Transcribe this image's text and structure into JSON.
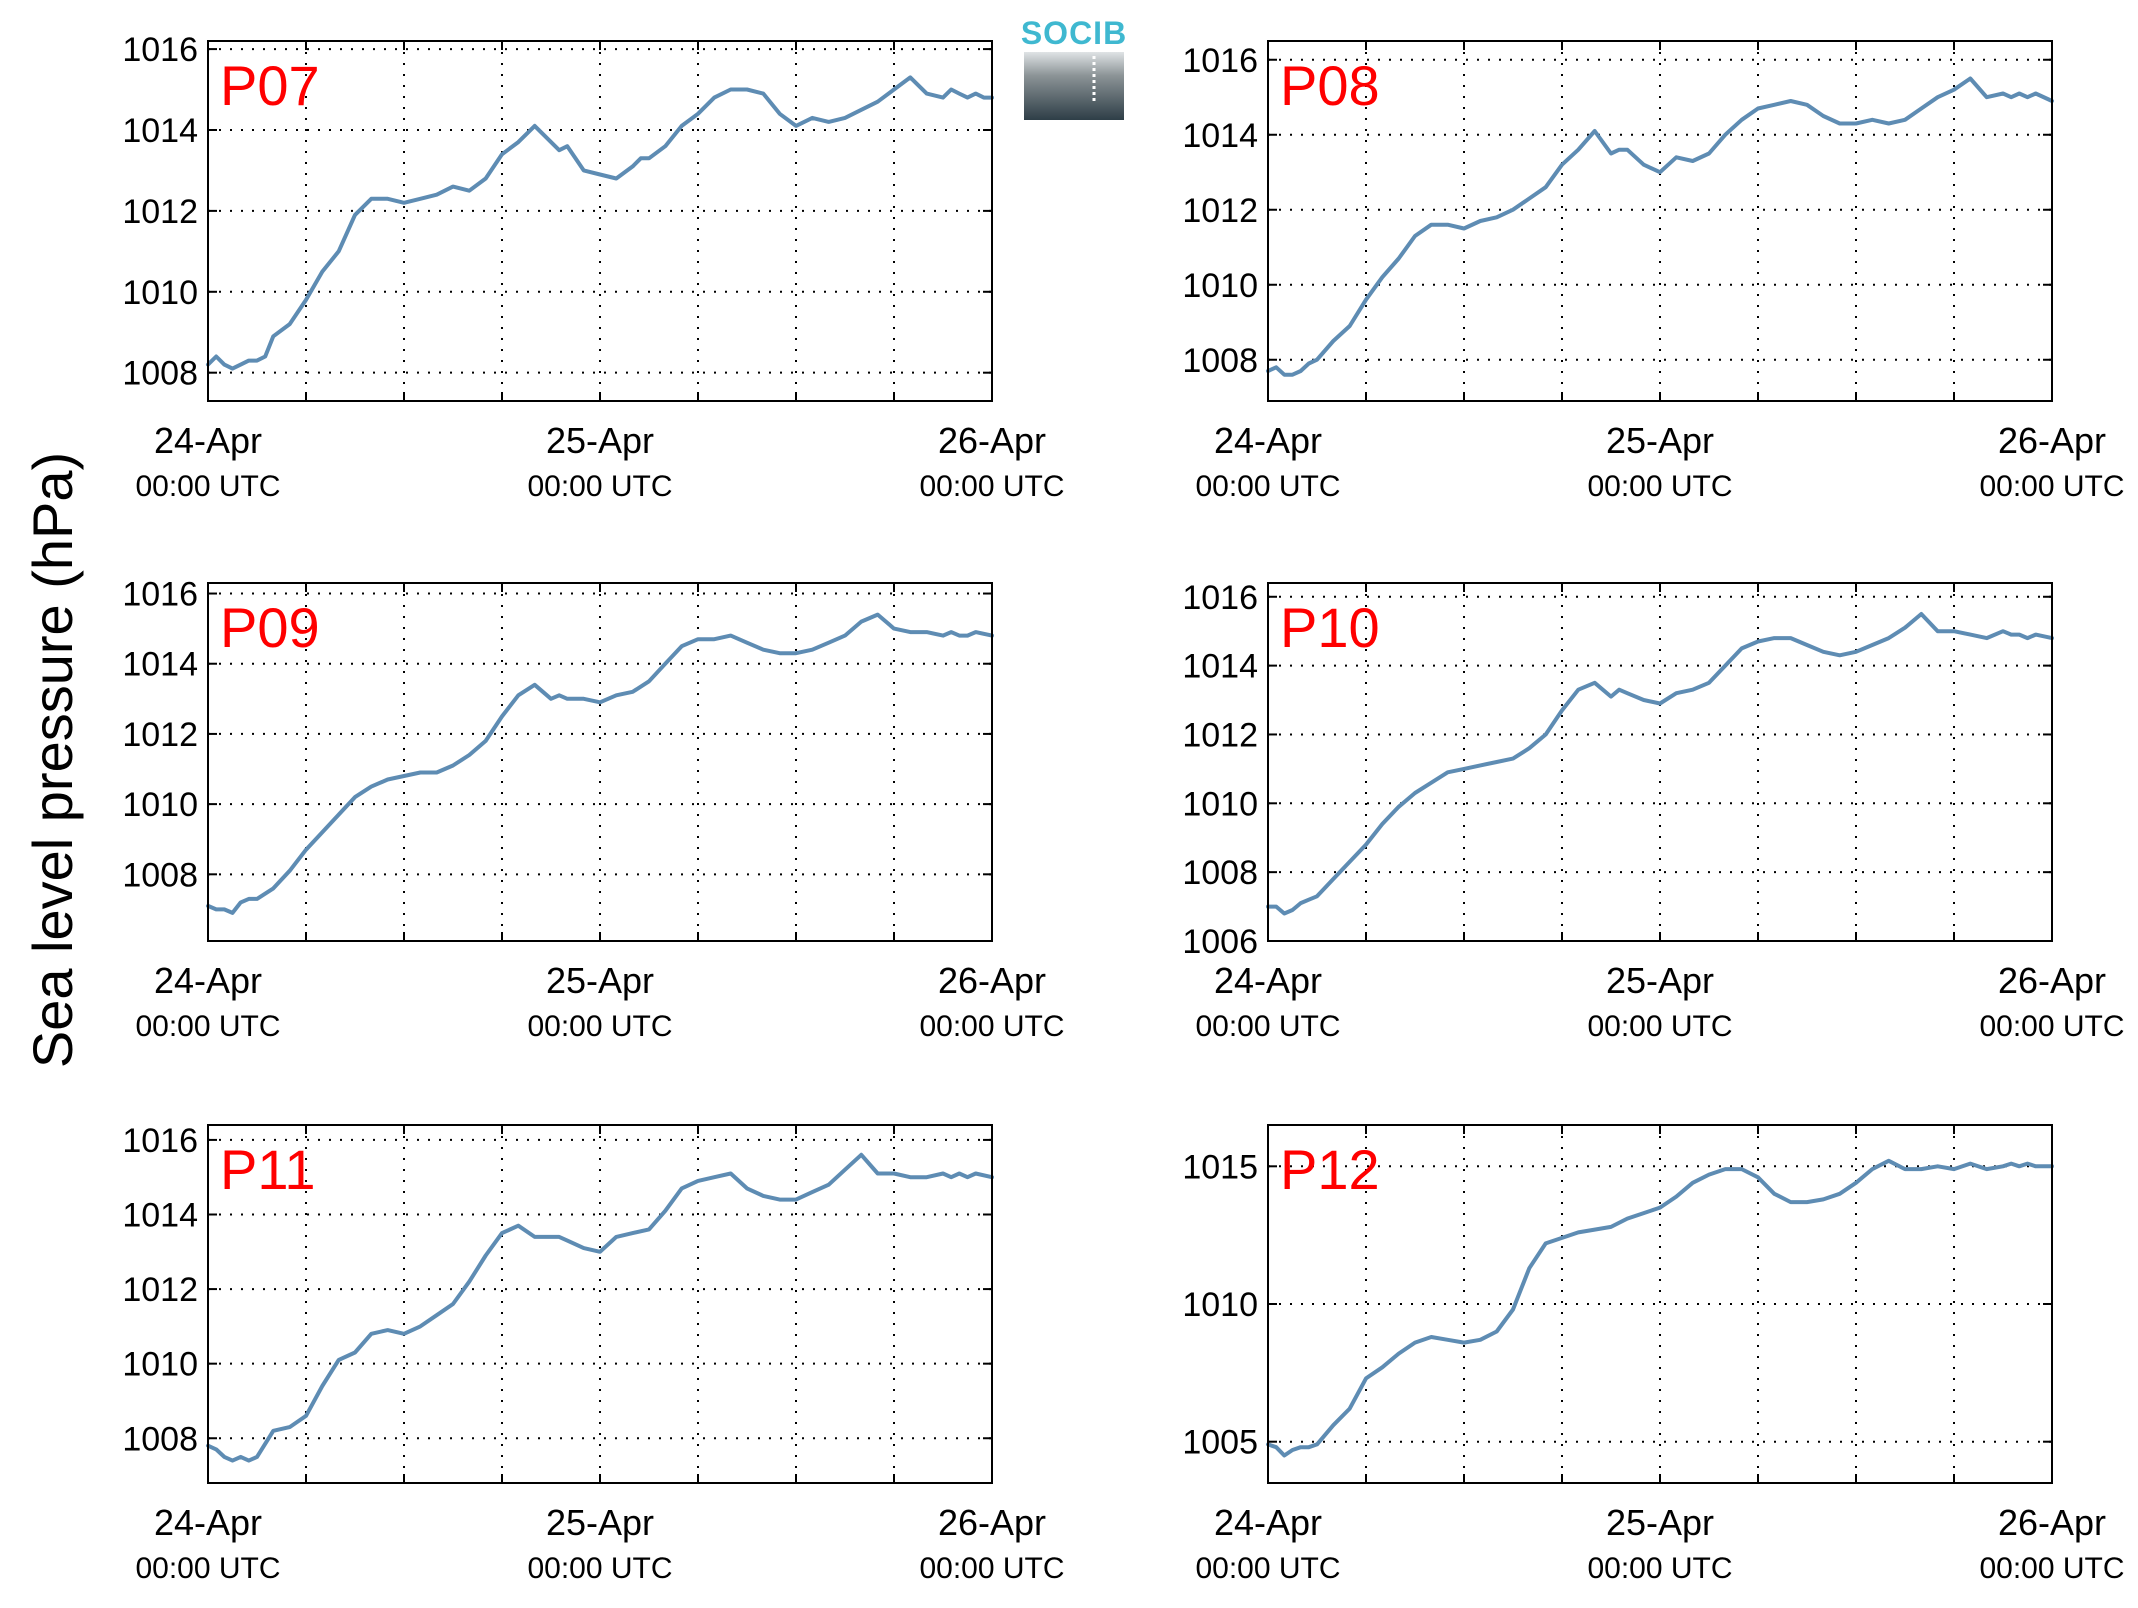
{
  "figure": {
    "ylabel": "Sea level pressure (hPa)",
    "logo_text": "SOCIB"
  },
  "colors": {
    "line": "#5e8cb3",
    "panel_label": "#ff0000",
    "grid": "#000000",
    "logo_top": "#3fb8d0",
    "logo_mid": "#8b9396",
    "logo_bottom": "#2e3e47"
  },
  "x_ticks": [
    {
      "date": "24-Apr",
      "time": "00:00 UTC"
    },
    {
      "date": "25-Apr",
      "time": "00:00 UTC"
    },
    {
      "date": "26-Apr",
      "time": "00:00 UTC"
    }
  ],
  "x_axis": {
    "unit": "hours",
    "xlim": [
      0,
      48
    ],
    "grid_step": 6,
    "major_ticks": [
      0,
      24,
      48
    ]
  },
  "chart_data": [
    {
      "type": "line",
      "panel_label": "P07",
      "title": "",
      "xlabel": "",
      "ylabel": "Sea level pressure (hPa)",
      "ylim": [
        1007.3,
        1016.2
      ],
      "yticks": [
        1008,
        1010,
        1012,
        1014,
        1016
      ],
      "ytick_labels": [
        "1008",
        "1010",
        "1012",
        "1014",
        "1016"
      ],
      "grid": true,
      "series": [
        {
          "x": [
            0,
            0.5,
            1,
            1.5,
            2,
            2.5,
            3,
            3.5,
            4,
            5,
            6,
            7,
            8,
            9,
            10,
            11,
            12,
            13,
            14,
            15,
            16,
            17,
            18,
            19,
            20,
            21,
            21.5,
            22,
            23,
            24,
            25,
            26,
            26.5,
            27,
            28,
            29,
            30,
            31,
            32,
            33,
            34,
            35,
            36,
            37,
            38,
            39,
            40,
            41,
            42,
            43,
            44,
            45,
            45.5,
            46,
            46.5,
            47,
            47.5,
            48
          ],
          "y": [
            1008.2,
            1008.4,
            1008.2,
            1008.1,
            1008.2,
            1008.3,
            1008.3,
            1008.4,
            1008.9,
            1009.2,
            1009.8,
            1010.5,
            1011.0,
            1011.9,
            1012.3,
            1012.3,
            1012.2,
            1012.3,
            1012.4,
            1012.6,
            1012.5,
            1012.8,
            1013.4,
            1013.7,
            1014.1,
            1013.7,
            1013.5,
            1013.6,
            1013.0,
            1012.9,
            1012.8,
            1013.1,
            1013.3,
            1013.3,
            1013.6,
            1014.1,
            1014.4,
            1014.8,
            1015.0,
            1015.0,
            1014.9,
            1014.4,
            1014.1,
            1014.3,
            1014.2,
            1014.3,
            1014.5,
            1014.7,
            1015.0,
            1015.3,
            1014.9,
            1014.8,
            1015.0,
            1014.9,
            1014.8,
            1014.9,
            1014.8,
            1014.8
          ]
        }
      ]
    },
    {
      "type": "line",
      "panel_label": "P08",
      "title": "",
      "xlabel": "",
      "ylabel": "Sea level pressure (hPa)",
      "ylim": [
        1006.9,
        1016.5
      ],
      "yticks": [
        1008,
        1010,
        1012,
        1014,
        1016
      ],
      "ytick_labels": [
        "1008",
        "1010",
        "1012",
        "1014",
        "1016"
      ],
      "grid": true,
      "series": [
        {
          "x": [
            0,
            0.5,
            1,
            1.5,
            2,
            2.5,
            3,
            4,
            5,
            6,
            7,
            8,
            9,
            10,
            11,
            12,
            13,
            14,
            15,
            16,
            17,
            18,
            19,
            20,
            21,
            21.5,
            22,
            23,
            24,
            25,
            26,
            27,
            28,
            29,
            30,
            31,
            32,
            33,
            34,
            35,
            36,
            37,
            38,
            39,
            40,
            41,
            42,
            43,
            44,
            45,
            45.5,
            46,
            46.5,
            47,
            48
          ],
          "y": [
            1007.7,
            1007.8,
            1007.6,
            1007.6,
            1007.7,
            1007.9,
            1008.0,
            1008.5,
            1008.9,
            1009.6,
            1010.2,
            1010.7,
            1011.3,
            1011.6,
            1011.6,
            1011.5,
            1011.7,
            1011.8,
            1012.0,
            1012.3,
            1012.6,
            1013.2,
            1013.6,
            1014.1,
            1013.5,
            1013.6,
            1013.6,
            1013.2,
            1013.0,
            1013.4,
            1013.3,
            1013.5,
            1014.0,
            1014.4,
            1014.7,
            1014.8,
            1014.9,
            1014.8,
            1014.5,
            1014.3,
            1014.3,
            1014.4,
            1014.3,
            1014.4,
            1014.7,
            1015.0,
            1015.2,
            1015.5,
            1015.0,
            1015.1,
            1015.0,
            1015.1,
            1015.0,
            1015.1,
            1014.9
          ]
        }
      ]
    },
    {
      "type": "line",
      "panel_label": "P09",
      "title": "",
      "xlabel": "",
      "ylabel": "Sea level pressure (hPa)",
      "ylim": [
        1006.1,
        1016.3
      ],
      "yticks": [
        1008,
        1010,
        1012,
        1014,
        1016
      ],
      "ytick_labels": [
        "1008",
        "1010",
        "1012",
        "1014",
        "1016"
      ],
      "grid": true,
      "series": [
        {
          "x": [
            0,
            0.5,
            1,
            1.5,
            2,
            2.5,
            3,
            4,
            5,
            6,
            7,
            8,
            9,
            10,
            11,
            12,
            13,
            14,
            15,
            16,
            17,
            18,
            19,
            20,
            21,
            21.5,
            22,
            23,
            24,
            25,
            26,
            27,
            28,
            29,
            30,
            31,
            32,
            33,
            34,
            35,
            36,
            37,
            38,
            39,
            40,
            41,
            42,
            43,
            44,
            45,
            45.5,
            46,
            46.5,
            47,
            48
          ],
          "y": [
            1007.1,
            1007.0,
            1007.0,
            1006.9,
            1007.2,
            1007.3,
            1007.3,
            1007.6,
            1008.1,
            1008.7,
            1009.2,
            1009.7,
            1010.2,
            1010.5,
            1010.7,
            1010.8,
            1010.9,
            1010.9,
            1011.1,
            1011.4,
            1011.8,
            1012.5,
            1013.1,
            1013.4,
            1013.0,
            1013.1,
            1013.0,
            1013.0,
            1012.9,
            1013.1,
            1013.2,
            1013.5,
            1014.0,
            1014.5,
            1014.7,
            1014.7,
            1014.8,
            1014.6,
            1014.4,
            1014.3,
            1014.3,
            1014.4,
            1014.6,
            1014.8,
            1015.2,
            1015.4,
            1015.0,
            1014.9,
            1014.9,
            1014.8,
            1014.9,
            1014.8,
            1014.8,
            1014.9,
            1014.8
          ]
        }
      ]
    },
    {
      "type": "line",
      "panel_label": "P10",
      "title": "",
      "xlabel": "",
      "ylabel": "Sea level pressure (hPa)",
      "ylim": [
        1006.0,
        1016.4
      ],
      "yticks": [
        1006,
        1008,
        1010,
        1012,
        1014,
        1016
      ],
      "ytick_labels": [
        "1006",
        "1008",
        "1010",
        "1012",
        "1014",
        "1016"
      ],
      "grid": true,
      "series": [
        {
          "x": [
            0,
            0.5,
            1,
            1.5,
            2,
            2.5,
            3,
            4,
            5,
            6,
            7,
            8,
            9,
            10,
            11,
            12,
            13,
            14,
            15,
            16,
            17,
            18,
            19,
            20,
            21,
            21.5,
            22,
            23,
            24,
            25,
            26,
            27,
            28,
            29,
            30,
            31,
            32,
            33,
            34,
            35,
            36,
            37,
            38,
            39,
            40,
            41,
            42,
            43,
            44,
            45,
            45.5,
            46,
            46.5,
            47,
            48
          ],
          "y": [
            1007.0,
            1007.0,
            1006.8,
            1006.9,
            1007.1,
            1007.2,
            1007.3,
            1007.8,
            1008.3,
            1008.8,
            1009.4,
            1009.9,
            1010.3,
            1010.6,
            1010.9,
            1011.0,
            1011.1,
            1011.2,
            1011.3,
            1011.6,
            1012.0,
            1012.7,
            1013.3,
            1013.5,
            1013.1,
            1013.3,
            1013.2,
            1013.0,
            1012.9,
            1013.2,
            1013.3,
            1013.5,
            1014.0,
            1014.5,
            1014.7,
            1014.8,
            1014.8,
            1014.6,
            1014.4,
            1014.3,
            1014.4,
            1014.6,
            1014.8,
            1015.1,
            1015.5,
            1015.0,
            1015.0,
            1014.9,
            1014.8,
            1015.0,
            1014.9,
            1014.9,
            1014.8,
            1014.9,
            1014.8
          ]
        }
      ]
    },
    {
      "type": "line",
      "panel_label": "P11",
      "title": "",
      "xlabel": "",
      "ylabel": "Sea level pressure (hPa)",
      "ylim": [
        1006.8,
        1016.4
      ],
      "yticks": [
        1008,
        1010,
        1012,
        1014,
        1016
      ],
      "ytick_labels": [
        "1008",
        "1010",
        "1012",
        "1014",
        "1016"
      ],
      "grid": true,
      "series": [
        {
          "x": [
            0,
            0.5,
            1,
            1.5,
            2,
            2.5,
            3,
            4,
            5,
            6,
            7,
            8,
            9,
            10,
            11,
            12,
            13,
            14,
            15,
            16,
            17,
            18,
            19,
            20,
            21,
            21.5,
            22,
            23,
            24,
            25,
            26,
            27,
            28,
            29,
            30,
            31,
            32,
            33,
            34,
            35,
            36,
            37,
            38,
            39,
            40,
            41,
            42,
            43,
            44,
            45,
            45.5,
            46,
            46.5,
            47,
            48
          ],
          "y": [
            1007.8,
            1007.7,
            1007.5,
            1007.4,
            1007.5,
            1007.4,
            1007.5,
            1008.2,
            1008.3,
            1008.6,
            1009.4,
            1010.1,
            1010.3,
            1010.8,
            1010.9,
            1010.8,
            1011.0,
            1011.3,
            1011.6,
            1012.2,
            1012.9,
            1013.5,
            1013.7,
            1013.4,
            1013.4,
            1013.4,
            1013.3,
            1013.1,
            1013.0,
            1013.4,
            1013.5,
            1013.6,
            1014.1,
            1014.7,
            1014.9,
            1015.0,
            1015.1,
            1014.7,
            1014.5,
            1014.4,
            1014.4,
            1014.6,
            1014.8,
            1015.2,
            1015.6,
            1015.1,
            1015.1,
            1015.0,
            1015.0,
            1015.1,
            1015.0,
            1015.1,
            1015.0,
            1015.1,
            1015.0
          ]
        }
      ]
    },
    {
      "type": "line",
      "panel_label": "P12",
      "title": "",
      "xlabel": "",
      "ylabel": "Sea level pressure (hPa)",
      "ylim": [
        1003.5,
        1016.5
      ],
      "yticks": [
        1005,
        1010,
        1015
      ],
      "ytick_labels": [
        "1005",
        "1010",
        "1015"
      ],
      "grid": true,
      "series": [
        {
          "x": [
            0,
            0.5,
            1,
            1.5,
            2,
            2.5,
            3,
            4,
            5,
            6,
            7,
            8,
            9,
            10,
            11,
            12,
            13,
            14,
            15,
            16,
            17,
            18,
            19,
            20,
            21,
            22,
            23,
            24,
            25,
            26,
            27,
            28,
            29,
            30,
            31,
            32,
            33,
            34,
            35,
            36,
            37,
            38,
            39,
            40,
            41,
            42,
            43,
            44,
            45,
            45.5,
            46,
            46.5,
            47,
            48
          ],
          "y": [
            1004.9,
            1004.8,
            1004.5,
            1004.7,
            1004.8,
            1004.8,
            1004.9,
            1005.6,
            1006.2,
            1007.3,
            1007.7,
            1008.2,
            1008.6,
            1008.8,
            1008.7,
            1008.6,
            1008.7,
            1009.0,
            1009.8,
            1011.3,
            1012.2,
            1012.4,
            1012.6,
            1012.7,
            1012.8,
            1013.1,
            1013.3,
            1013.5,
            1013.9,
            1014.4,
            1014.7,
            1014.9,
            1014.9,
            1014.6,
            1014.0,
            1013.7,
            1013.7,
            1013.8,
            1014.0,
            1014.4,
            1014.9,
            1015.2,
            1014.9,
            1014.9,
            1015.0,
            1014.9,
            1015.1,
            1014.9,
            1015.0,
            1015.1,
            1015.0,
            1015.1,
            1015.0,
            1015.0
          ]
        }
      ]
    }
  ]
}
